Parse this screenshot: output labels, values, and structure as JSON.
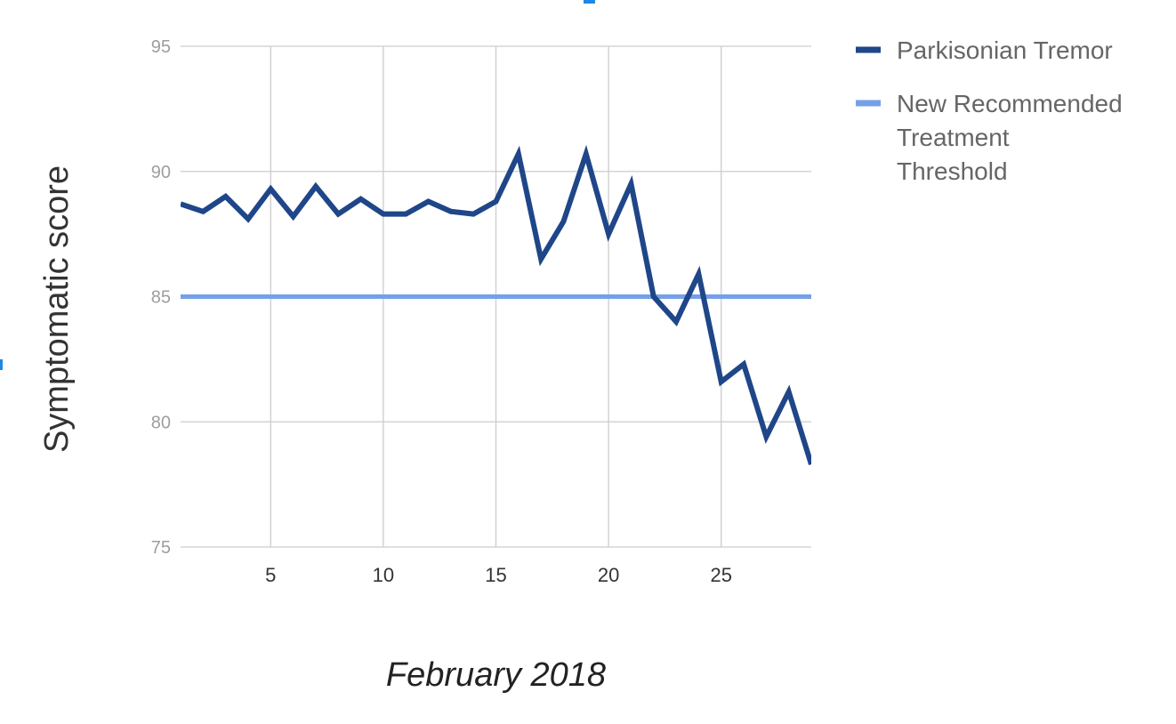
{
  "chart_data": {
    "type": "line",
    "title": "",
    "xlabel": "February 2018",
    "ylabel": "Symptomatic score",
    "xlim": [
      1,
      29
    ],
    "ylim": [
      75,
      95
    ],
    "x_ticks": [
      5,
      10,
      15,
      20,
      25
    ],
    "y_ticks": [
      75,
      80,
      85,
      90,
      95
    ],
    "grid": true,
    "legend_position": "right",
    "x": [
      1,
      2,
      3,
      4,
      5,
      6,
      7,
      8,
      9,
      10,
      11,
      12,
      13,
      14,
      15,
      16,
      17,
      18,
      19,
      20,
      21,
      22,
      23,
      24,
      25,
      26,
      27,
      28,
      29
    ],
    "series": [
      {
        "name": "Parkisonian Tremor",
        "color": "#1f4688",
        "values": [
          88.7,
          88.4,
          89.0,
          88.1,
          89.3,
          88.2,
          89.4,
          88.3,
          88.9,
          88.3,
          88.3,
          88.8,
          88.4,
          88.3,
          88.8,
          90.7,
          86.5,
          88.0,
          90.7,
          87.5,
          89.5,
          85.0,
          84.0,
          85.9,
          81.6,
          82.3,
          79.4,
          81.2,
          78.3
        ]
      },
      {
        "name": "New Recommended Treatment Threshold",
        "name_lines": [
          "New Recommended",
          "Treatment",
          "Threshold"
        ],
        "color": "#74a0e8",
        "values": [
          85,
          85,
          85,
          85,
          85,
          85,
          85,
          85,
          85,
          85,
          85,
          85,
          85,
          85,
          85,
          85,
          85,
          85,
          85,
          85,
          85,
          85,
          85,
          85,
          85,
          85,
          85,
          85,
          85
        ]
      }
    ]
  }
}
